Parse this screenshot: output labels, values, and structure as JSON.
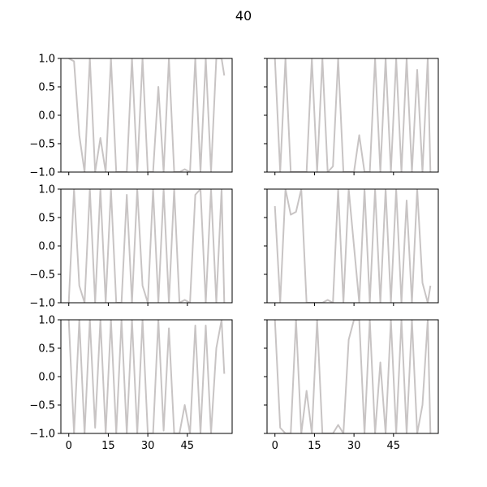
{
  "figure": {
    "title": "40"
  },
  "chart_data": {
    "type": "line",
    "layout": "3 rows x 2 columns, shared x and y axes",
    "line_color": "#c8c4c4",
    "xlim": [
      -3,
      62
    ],
    "ylim": [
      -1.0,
      1.0
    ],
    "x_ticks": [
      0,
      15,
      30,
      45
    ],
    "x_tick_labels": [
      "0",
      "15",
      "30",
      "45"
    ],
    "y_ticks": [
      -1.0,
      -0.5,
      0.0,
      0.5,
      1.0
    ],
    "y_tick_labels": [
      "−1.0",
      "−0.5",
      "0.0",
      "0.5",
      "1.0"
    ],
    "grid": false,
    "panels": [
      {
        "x": [
          0,
          2,
          4,
          6,
          8,
          10,
          12,
          14,
          16,
          18,
          20,
          22,
          24,
          26,
          28,
          30,
          32,
          34,
          36,
          38,
          40,
          42,
          44,
          46,
          48,
          50,
          52,
          54,
          56,
          58,
          59
        ],
        "y": [
          1.0,
          0.95,
          -0.35,
          -1.0,
          1.0,
          -1.0,
          -0.4,
          -1.0,
          1.0,
          -1.0,
          -1.0,
          -1.0,
          1.0,
          -1.0,
          1.0,
          -1.0,
          -1.0,
          0.5,
          -1.0,
          1.0,
          -1.0,
          -1.0,
          -0.95,
          -1.0,
          1.0,
          -1.0,
          1.0,
          -1.0,
          1.0,
          1.0,
          0.7
        ]
      },
      {
        "x": [
          0,
          2,
          4,
          6,
          8,
          10,
          12,
          14,
          16,
          18,
          20,
          22,
          24,
          26,
          28,
          30,
          32,
          34,
          36,
          38,
          40,
          42,
          44,
          46,
          48,
          50,
          52,
          54,
          56,
          58,
          59
        ],
        "y": [
          1.0,
          -1.0,
          1.0,
          -1.0,
          -1.0,
          -1.0,
          -1.0,
          1.0,
          -1.0,
          1.0,
          -1.0,
          -0.9,
          1.0,
          -1.0,
          -1.0,
          -1.0,
          -0.35,
          -1.0,
          -1.0,
          1.0,
          -1.0,
          1.0,
          -1.0,
          1.0,
          -1.0,
          1.0,
          -1.0,
          0.8,
          -1.0,
          1.0,
          -1.0
        ]
      },
      {
        "x": [
          0,
          2,
          4,
          6,
          8,
          10,
          12,
          14,
          16,
          18,
          20,
          22,
          24,
          26,
          28,
          30,
          32,
          34,
          36,
          38,
          40,
          42,
          44,
          46,
          48,
          50,
          52,
          54,
          56,
          58,
          59
        ],
        "y": [
          -1.0,
          1.0,
          -0.7,
          -1.0,
          1.0,
          -1.0,
          1.0,
          -1.0,
          1.0,
          -1.0,
          -1.0,
          0.9,
          -1.0,
          1.0,
          -0.7,
          -1.0,
          1.0,
          -1.0,
          1.0,
          -1.0,
          1.0,
          -1.0,
          -0.95,
          -1.0,
          0.9,
          1.0,
          -1.0,
          1.0,
          -1.0,
          1.0,
          -1.0
        ]
      },
      {
        "x": [
          0,
          2,
          4,
          6,
          8,
          10,
          12,
          14,
          16,
          18,
          20,
          22,
          24,
          26,
          28,
          30,
          32,
          34,
          36,
          38,
          40,
          42,
          44,
          46,
          48,
          50,
          52,
          54,
          56,
          58,
          59
        ],
        "y": [
          0.7,
          -1.0,
          1.0,
          0.55,
          0.6,
          1.0,
          -1.0,
          -1.0,
          -1.0,
          -1.0,
          -0.95,
          -1.0,
          1.0,
          -1.0,
          1.0,
          -0.0,
          -1.0,
          1.0,
          -1.0,
          1.0,
          -1.0,
          1.0,
          -1.0,
          1.0,
          -1.0,
          0.8,
          -1.0,
          1.0,
          -0.65,
          -1.0,
          -0.7
        ]
      },
      {
        "x": [
          0,
          2,
          4,
          6,
          8,
          10,
          12,
          14,
          16,
          18,
          20,
          22,
          24,
          26,
          28,
          30,
          32,
          34,
          36,
          38,
          40,
          42,
          44,
          46,
          48,
          50,
          52,
          54,
          56,
          58,
          59
        ],
        "y": [
          1.0,
          -1.0,
          1.0,
          -1.0,
          1.0,
          -0.9,
          1.0,
          -1.0,
          1.0,
          -1.0,
          1.0,
          -1.0,
          1.0,
          -1.0,
          1.0,
          -1.0,
          -1.0,
          1.0,
          -0.95,
          0.85,
          -1.0,
          -1.0,
          -0.5,
          -1.0,
          0.9,
          -1.0,
          0.9,
          -1.0,
          0.5,
          1.0,
          0.05
        ]
      },
      {
        "x": [
          0,
          2,
          4,
          6,
          8,
          10,
          12,
          14,
          16,
          18,
          20,
          22,
          24,
          26,
          28,
          30,
          32,
          34,
          36,
          38,
          40,
          42,
          44,
          46,
          48,
          50,
          52,
          54,
          56,
          58,
          59
        ],
        "y": [
          1.0,
          -0.9,
          -1.0,
          -1.0,
          1.0,
          -1.0,
          -0.25,
          -1.0,
          1.0,
          -1.0,
          -1.0,
          -1.0,
          -0.85,
          -1.0,
          0.65,
          1.0,
          1.0,
          -1.0,
          1.0,
          -1.0,
          0.25,
          -1.0,
          1.0,
          -1.0,
          1.0,
          -1.0,
          1.0,
          -1.0,
          -0.5,
          1.0,
          -1.0
        ]
      }
    ]
  }
}
